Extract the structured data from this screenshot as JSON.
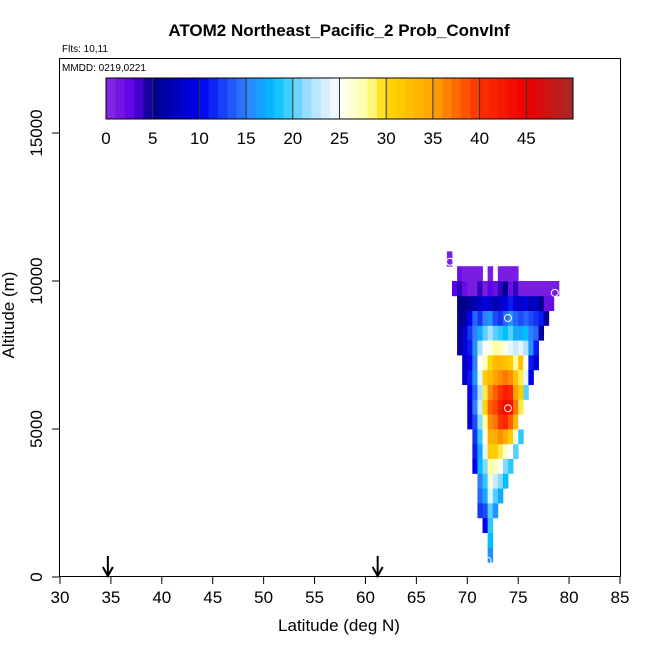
{
  "chart_data": {
    "type": "heatmap",
    "title": "ATOM2 Northeast_Pacific_2 Prob_ConvInf",
    "flights_text": "Flts: 10,11",
    "mmdd_text": "MMDD: 0219,0221",
    "xlabel": "Latitude (deg N)",
    "ylabel": "Altitude (m)",
    "xlim": [
      30,
      85
    ],
    "ylim": [
      0,
      17500
    ],
    "x_ticks": [
      "30",
      "35",
      "40",
      "45",
      "50",
      "55",
      "60",
      "65",
      "70",
      "75",
      "80",
      "85"
    ],
    "y_ticks": [
      "0",
      "5000",
      "10000",
      "15000"
    ],
    "colorbar": {
      "range": [
        0,
        50
      ],
      "tick_labels": [
        "0",
        "5",
        "10",
        "15",
        "20",
        "25",
        "30",
        "35",
        "40",
        "45"
      ],
      "stops": [
        {
          "v": 0,
          "c": "#8a2be2"
        },
        {
          "v": 3,
          "c": "#5b00e6"
        },
        {
          "v": 5,
          "c": "#00008b"
        },
        {
          "v": 10,
          "c": "#0000ee"
        },
        {
          "v": 15,
          "c": "#2f7fff"
        },
        {
          "v": 18,
          "c": "#00bfff"
        },
        {
          "v": 22,
          "c": "#aee1ff"
        },
        {
          "v": 25,
          "c": "#ffffff"
        },
        {
          "v": 28,
          "c": "#ffffa0"
        },
        {
          "v": 30,
          "c": "#ffd700"
        },
        {
          "v": 35,
          "c": "#ffa500"
        },
        {
          "v": 40,
          "c": "#ff3000"
        },
        {
          "v": 45,
          "c": "#ee0000"
        },
        {
          "v": 50,
          "c": "#a52a2a"
        }
      ]
    },
    "arrows": [
      {
        "lat": 34.7
      },
      {
        "lat": 61.2
      }
    ],
    "markers": [
      {
        "lat": 68.3,
        "alt": 10650
      },
      {
        "lat": 78.6,
        "alt": 9600
      },
      {
        "lat": 74.0,
        "alt": 8750
      },
      {
        "lat": 74.0,
        "alt": 5700
      },
      {
        "lat": 72.0,
        "alt": 550
      }
    ],
    "cell_width_deg": 0.5,
    "cell_height_m": 500,
    "columns": [
      {
        "lat": 68.0,
        "cells": [
          [
            10500,
            1
          ]
        ]
      },
      {
        "lat": 68.5,
        "cells": [
          [
            9500,
            3
          ]
        ]
      },
      {
        "lat": 69.0,
        "cells": [
          [
            7500,
            6
          ],
          [
            8000,
            6
          ],
          [
            8500,
            5
          ],
          [
            9000,
            5
          ],
          [
            9500,
            4
          ],
          [
            10000,
            2
          ]
        ]
      },
      {
        "lat": 69.5,
        "cells": [
          [
            6500,
            8
          ],
          [
            7000,
            8
          ],
          [
            7500,
            9
          ],
          [
            8000,
            8
          ],
          [
            8500,
            6
          ],
          [
            9000,
            5
          ],
          [
            9500,
            2
          ],
          [
            10000,
            1
          ]
        ]
      },
      {
        "lat": 70.0,
        "cells": [
          [
            5000,
            9
          ],
          [
            5500,
            9
          ],
          [
            6000,
            10
          ],
          [
            6500,
            11
          ],
          [
            7000,
            10
          ],
          [
            7500,
            11
          ],
          [
            8000,
            12
          ],
          [
            8500,
            10
          ],
          [
            9000,
            6
          ],
          [
            9500,
            1
          ],
          [
            10000,
            1
          ]
        ]
      },
      {
        "lat": 70.5,
        "cells": [
          [
            3500,
            10
          ],
          [
            4000,
            11
          ],
          [
            4500,
            12
          ],
          [
            5000,
            13
          ],
          [
            5500,
            15
          ],
          [
            6000,
            14
          ],
          [
            6500,
            16
          ],
          [
            7000,
            15
          ],
          [
            7500,
            16
          ],
          [
            8000,
            15
          ],
          [
            8500,
            14
          ],
          [
            9000,
            7
          ],
          [
            9500,
            1
          ],
          [
            10000,
            1
          ]
        ]
      },
      {
        "lat": 71.0,
        "cells": [
          [
            2000,
            12
          ],
          [
            2500,
            14
          ],
          [
            3000,
            15
          ],
          [
            3500,
            18
          ],
          [
            4000,
            17
          ],
          [
            4500,
            19
          ],
          [
            5000,
            21
          ],
          [
            5500,
            23
          ],
          [
            6000,
            22
          ],
          [
            6500,
            24
          ],
          [
            7000,
            25
          ],
          [
            7500,
            22
          ],
          [
            8000,
            17
          ],
          [
            8500,
            12
          ],
          [
            9000,
            8
          ],
          [
            9500,
            4
          ],
          [
            10000,
            1
          ]
        ]
      },
      {
        "lat": 71.5,
        "cells": [
          [
            1500,
            10
          ],
          [
            2000,
            13
          ],
          [
            2500,
            17
          ],
          [
            3000,
            19
          ],
          [
            3500,
            21
          ],
          [
            4000,
            24
          ],
          [
            4500,
            26
          ],
          [
            5000,
            28
          ],
          [
            5500,
            30
          ],
          [
            6000,
            29
          ],
          [
            6500,
            31
          ],
          [
            7000,
            27
          ],
          [
            7500,
            25
          ],
          [
            8000,
            20
          ],
          [
            8500,
            15
          ],
          [
            9000,
            9
          ],
          [
            9500,
            1
          ]
        ]
      },
      {
        "lat": 72.0,
        "cells": [
          [
            500,
            16
          ],
          [
            1000,
            18
          ],
          [
            1500,
            19
          ],
          [
            2000,
            20
          ],
          [
            2500,
            24
          ],
          [
            3000,
            26
          ],
          [
            3500,
            28
          ],
          [
            4000,
            31
          ],
          [
            4500,
            34
          ],
          [
            5000,
            36
          ],
          [
            5500,
            38
          ],
          [
            6000,
            36
          ],
          [
            6500,
            33
          ],
          [
            7000,
            30
          ],
          [
            7500,
            26
          ],
          [
            8000,
            22
          ],
          [
            8500,
            16
          ],
          [
            9000,
            8
          ],
          [
            9500,
            3
          ],
          [
            10000,
            1
          ]
        ]
      },
      {
        "lat": 72.5,
        "cells": [
          [
            2000,
            16
          ],
          [
            2500,
            20
          ],
          [
            3000,
            23
          ],
          [
            3500,
            27
          ],
          [
            4000,
            31
          ],
          [
            4500,
            34
          ],
          [
            5000,
            37
          ],
          [
            5500,
            39
          ],
          [
            6000,
            38
          ],
          [
            6500,
            35
          ],
          [
            7000,
            33
          ],
          [
            7500,
            28
          ],
          [
            8000,
            20
          ],
          [
            8500,
            13
          ],
          [
            9000,
            7
          ],
          [
            9500,
            2
          ]
        ]
      },
      {
        "lat": 73.0,
        "cells": [
          [
            2500,
            17
          ],
          [
            3000,
            21
          ],
          [
            3500,
            25
          ],
          [
            4000,
            29
          ],
          [
            4500,
            36
          ],
          [
            5000,
            40
          ],
          [
            5500,
            42
          ],
          [
            6000,
            40
          ],
          [
            6500,
            36
          ],
          [
            7000,
            33
          ],
          [
            7500,
            27
          ],
          [
            8000,
            19
          ],
          [
            8500,
            12
          ],
          [
            9000,
            8
          ],
          [
            9500,
            4
          ],
          [
            10000,
            1
          ]
        ]
      },
      {
        "lat": 73.5,
        "cells": [
          [
            3000,
            18
          ],
          [
            3500,
            21
          ],
          [
            4000,
            27
          ],
          [
            4500,
            34
          ],
          [
            5000,
            41
          ],
          [
            5500,
            44
          ],
          [
            6000,
            42
          ],
          [
            6500,
            37
          ],
          [
            7000,
            32
          ],
          [
            7500,
            26
          ],
          [
            8000,
            18
          ],
          [
            8500,
            14
          ],
          [
            9000,
            9
          ],
          [
            9500,
            5
          ],
          [
            10000,
            1
          ]
        ]
      },
      {
        "lat": 74.0,
        "cells": [
          [
            3500,
            19
          ],
          [
            4000,
            25
          ],
          [
            4500,
            31
          ],
          [
            5000,
            38
          ],
          [
            5500,
            43
          ],
          [
            6000,
            41
          ],
          [
            6500,
            36
          ],
          [
            7000,
            31
          ],
          [
            7500,
            24
          ],
          [
            8000,
            20
          ],
          [
            8500,
            16
          ],
          [
            9000,
            11
          ],
          [
            9500,
            2
          ],
          [
            10000,
            1
          ]
        ]
      },
      {
        "lat": 74.5,
        "cells": [
          [
            4000,
            20
          ],
          [
            4500,
            26
          ],
          [
            5000,
            33
          ],
          [
            5500,
            37
          ],
          [
            6000,
            35
          ],
          [
            6500,
            32
          ],
          [
            7000,
            28
          ],
          [
            7500,
            23
          ],
          [
            8000,
            17
          ],
          [
            8500,
            14
          ],
          [
            9000,
            9
          ],
          [
            9500,
            4
          ],
          [
            10000,
            1
          ]
        ]
      },
      {
        "lat": 75.0,
        "cells": [
          [
            4500,
            19
          ],
          [
            5000,
            25
          ],
          [
            5500,
            29
          ],
          [
            6000,
            31
          ],
          [
            6500,
            29
          ],
          [
            7000,
            32
          ],
          [
            7500,
            24
          ],
          [
            8000,
            17
          ],
          [
            8500,
            13
          ],
          [
            9000,
            8
          ],
          [
            9500,
            1
          ]
        ]
      },
      {
        "lat": 75.5,
        "cells": [
          [
            6000,
            20
          ],
          [
            6500,
            24
          ],
          [
            7000,
            25
          ],
          [
            7500,
            22
          ],
          [
            8000,
            18
          ],
          [
            8500,
            14
          ],
          [
            9000,
            9
          ],
          [
            9500,
            1
          ]
        ]
      },
      {
        "lat": 76.0,
        "cells": [
          [
            6500,
            10
          ],
          [
            7000,
            11
          ],
          [
            7500,
            16
          ],
          [
            8000,
            15
          ],
          [
            8500,
            13
          ],
          [
            9000,
            7
          ],
          [
            9500,
            1
          ]
        ]
      },
      {
        "lat": 76.5,
        "cells": [
          [
            7000,
            9
          ],
          [
            7500,
            11
          ],
          [
            8000,
            14
          ],
          [
            8500,
            12
          ],
          [
            9000,
            8
          ],
          [
            9500,
            1
          ]
        ]
      },
      {
        "lat": 77.0,
        "cells": [
          [
            8000,
            6
          ],
          [
            8500,
            11
          ],
          [
            9000,
            5
          ],
          [
            9500,
            1
          ]
        ]
      },
      {
        "lat": 77.5,
        "cells": [
          [
            8500,
            6
          ],
          [
            9000,
            2
          ],
          [
            9500,
            1
          ]
        ]
      },
      {
        "lat": 78.0,
        "cells": [
          [
            9000,
            2
          ],
          [
            9500,
            1
          ]
        ]
      },
      {
        "lat": 78.5,
        "cells": [
          [
            9500,
            1
          ]
        ]
      }
    ]
  }
}
